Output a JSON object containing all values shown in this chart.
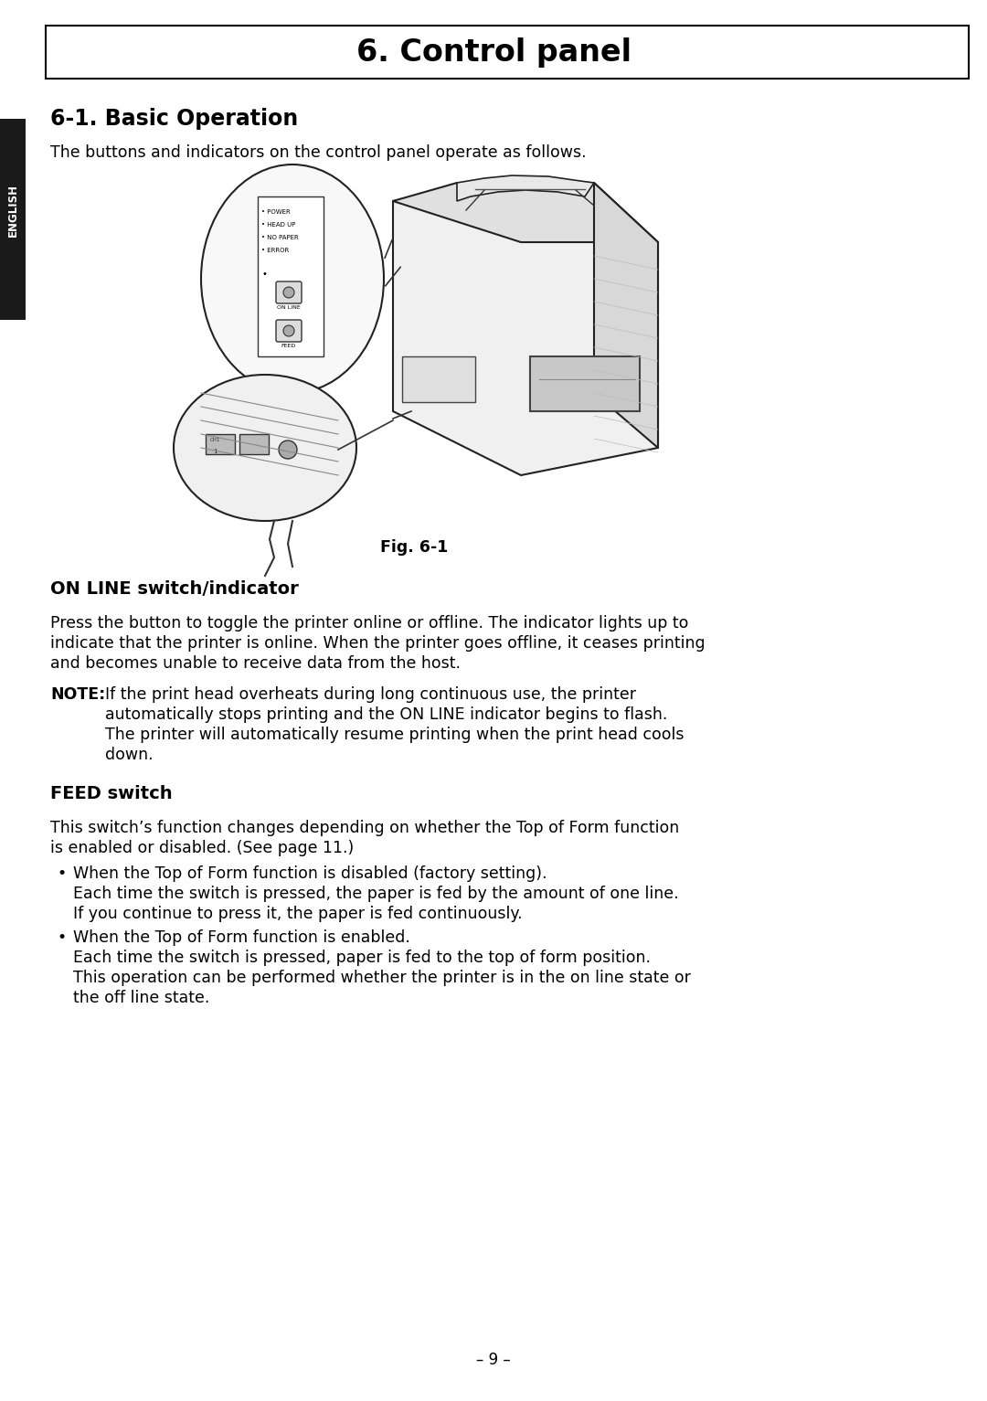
{
  "title": "6. Control panel",
  "section_title": "6-1. Basic Operation",
  "intro_text": "The buttons and indicators on the control panel operate as follows.",
  "fig_caption": "Fig. 6-1",
  "section2_title": "ON LINE switch/indicator",
  "section2_body_lines": [
    "Press the button to toggle the printer online or offline. The indicator lights up to",
    "indicate that the printer is online. When the printer goes offline, it ceases printing",
    "and becomes unable to receive data from the host."
  ],
  "note_label": "NOTE:",
  "note_body_lines": [
    "If the print head overheats during long continuous use, the printer",
    "automatically stops printing and the ON LINE indicator begins to flash.",
    "The printer will automatically resume printing when the print head cools",
    "down."
  ],
  "section3_title": "FEED switch",
  "section3_body_lines": [
    "This switch’s function changes depending on whether the Top of Form function",
    "is enabled or disabled. (See page 11.)"
  ],
  "bullet1_title": "When the Top of Form function is disabled (factory setting).",
  "bullet1_body_lines": [
    "Each time the switch is pressed, the paper is fed by the amount of one line.",
    "If you continue to press it, the paper is fed continuously."
  ],
  "bullet2_title": "When the Top of Form function is enabled.",
  "bullet2_body_lines": [
    "Each time the switch is pressed, paper is fed to the top of form position.",
    "This operation can be performed whether the printer is in the on line state or",
    "the off line state."
  ],
  "page_number": "– 9 –",
  "sidebar_text": "ENGLISH",
  "bg_color": "#ffffff",
  "text_color": "#000000",
  "sidebar_bg": "#1a1a1a",
  "sidebar_text_color": "#ffffff",
  "title_box_border": "#000000",
  "led_labels": [
    "• POWER",
    "• HEAD UP",
    "• NO PAPER",
    "• ERROR"
  ]
}
